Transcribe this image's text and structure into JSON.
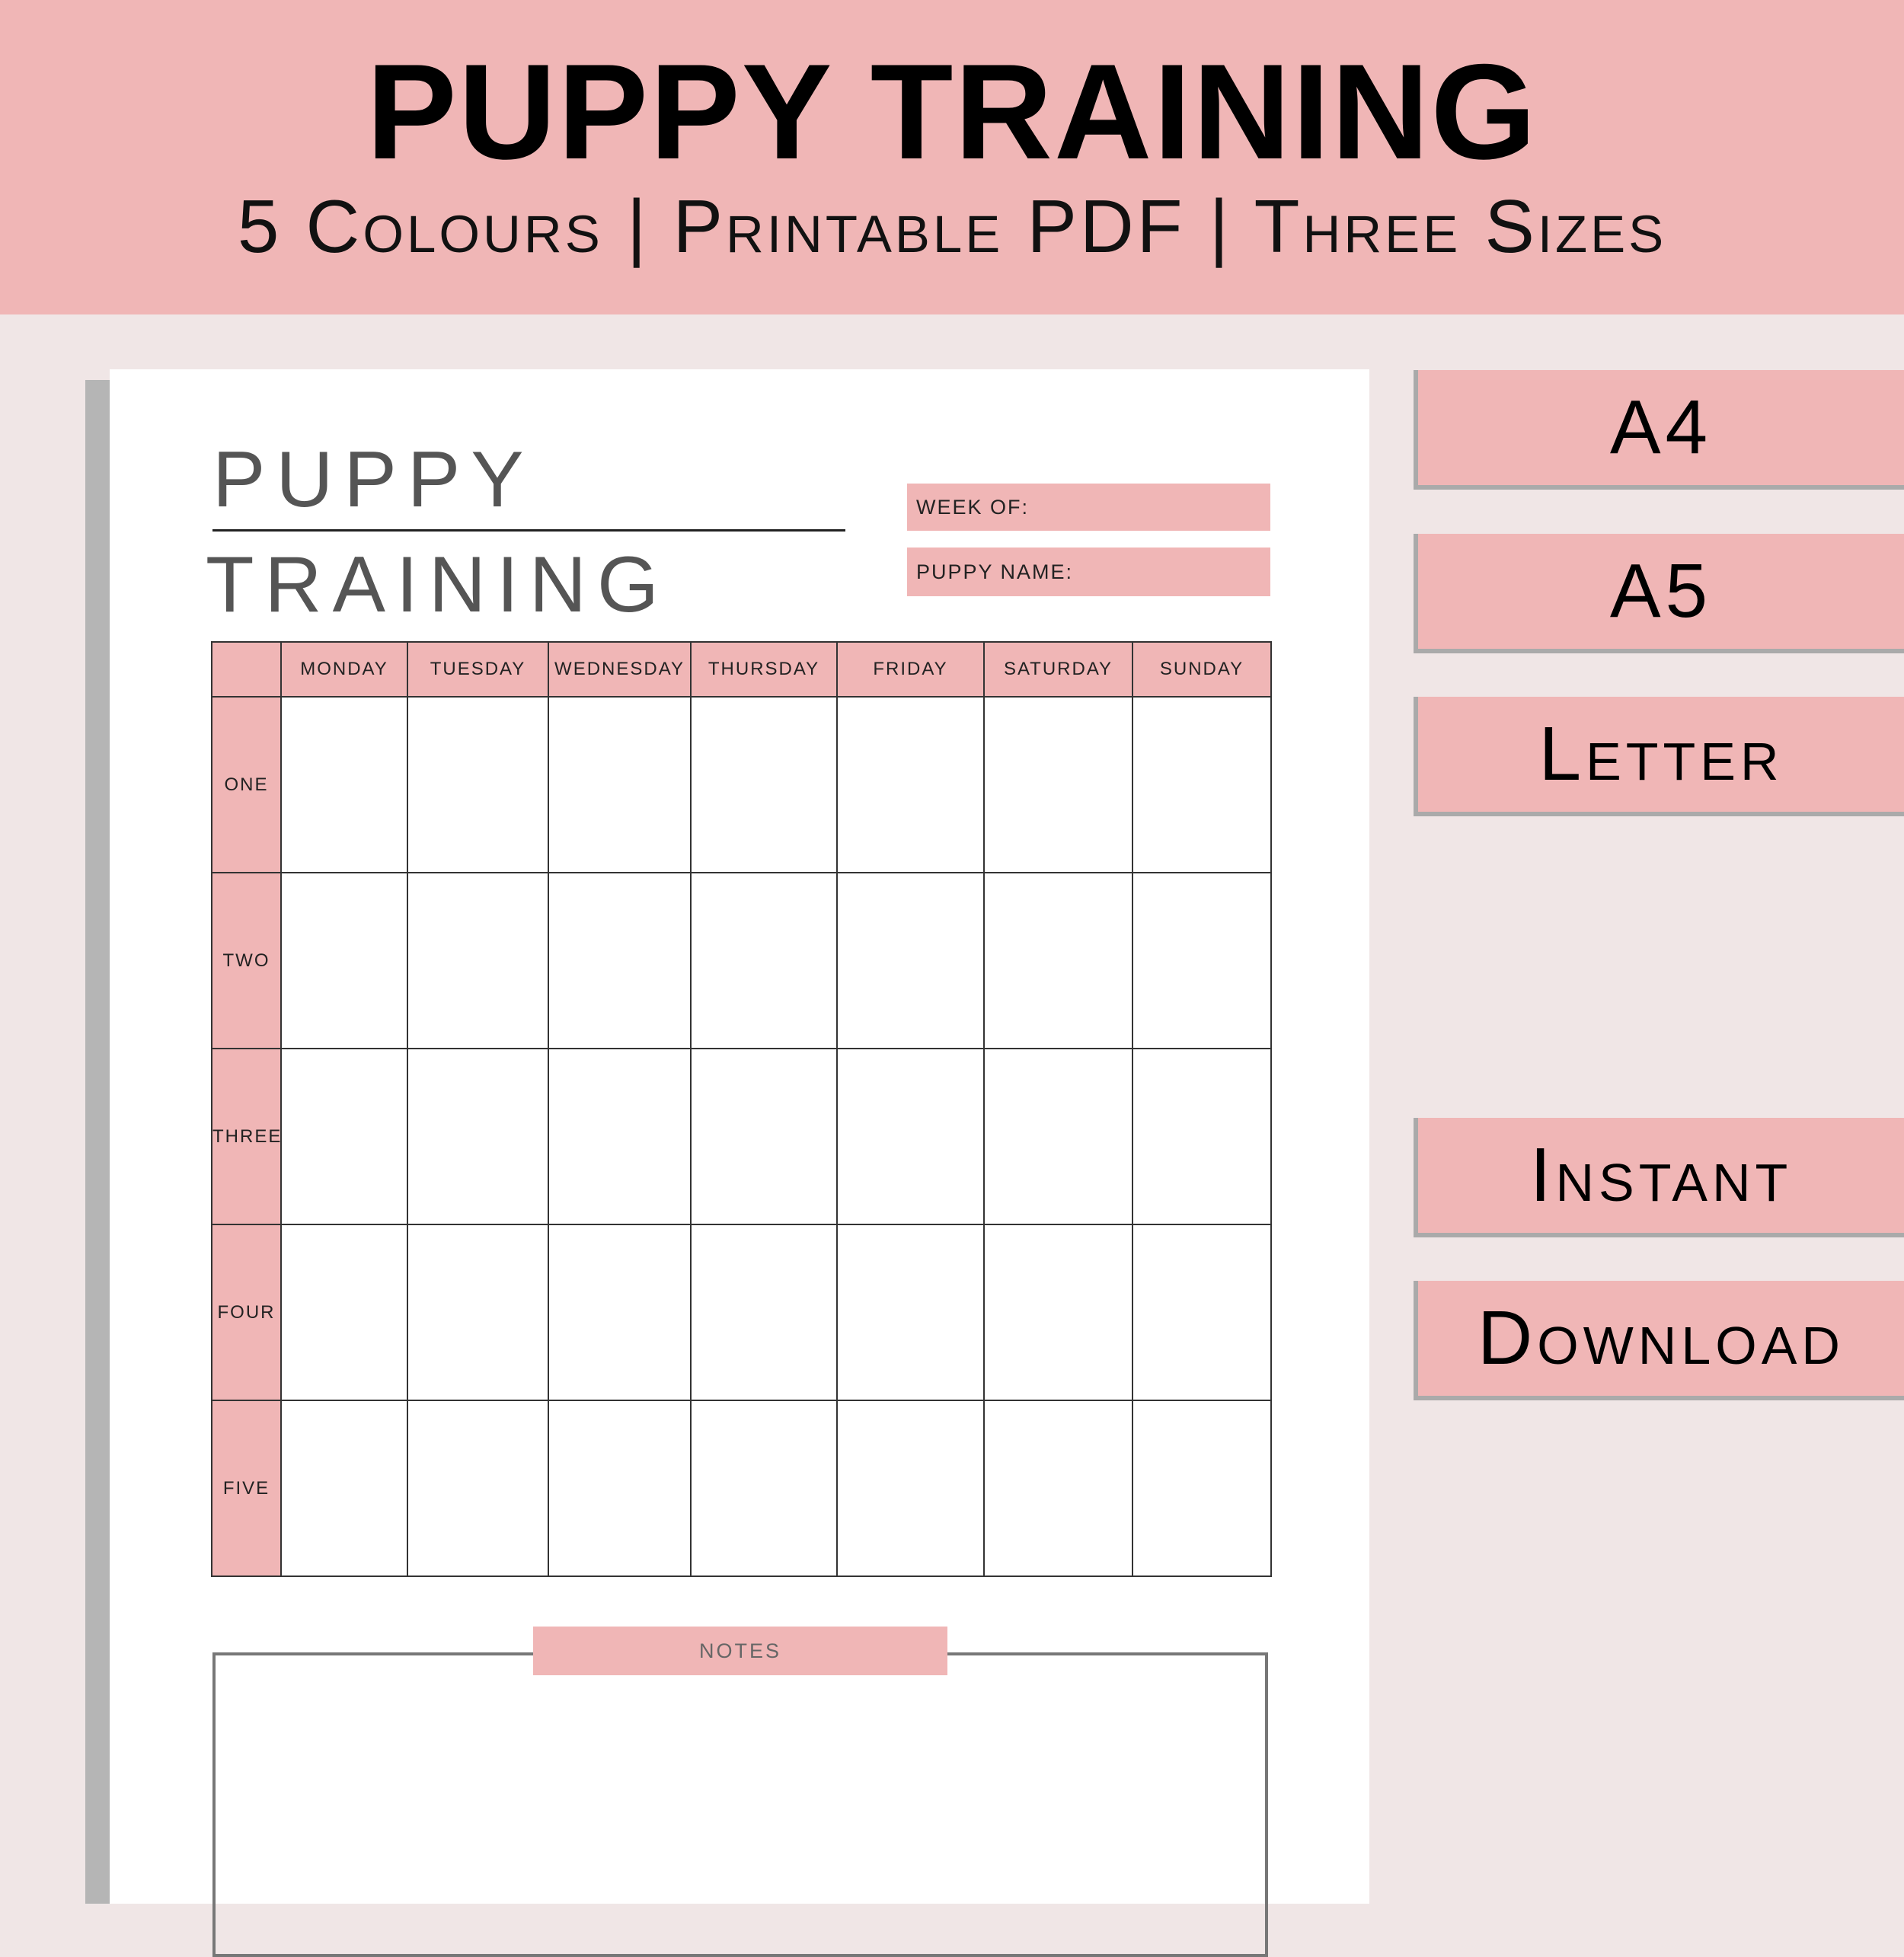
{
  "header": {
    "title": "PUPPY TRAINING",
    "subtitle": "5 Colours | Printable PDF | Three Sizes"
  },
  "colors": {
    "accent": "#f0b6b6",
    "background": "#f0e6e6",
    "paper": "#ffffff"
  },
  "planner": {
    "title_line1": "PUPPY",
    "title_line2": "TRAINING",
    "week_of_label": "WEEK OF:",
    "puppy_name_label": "PUPPY NAME:",
    "days": [
      "MONDAY",
      "TUESDAY",
      "WEDNESDAY",
      "THURSDAY",
      "FRIDAY",
      "SATURDAY",
      "SUNDAY"
    ],
    "rows": [
      "ONE",
      "TWO",
      "THREE",
      "FOUR",
      "FIVE"
    ],
    "notes_label": "NOTES"
  },
  "side_buttons": [
    "A4",
    "A5",
    "Letter",
    "Instant",
    "Download"
  ]
}
